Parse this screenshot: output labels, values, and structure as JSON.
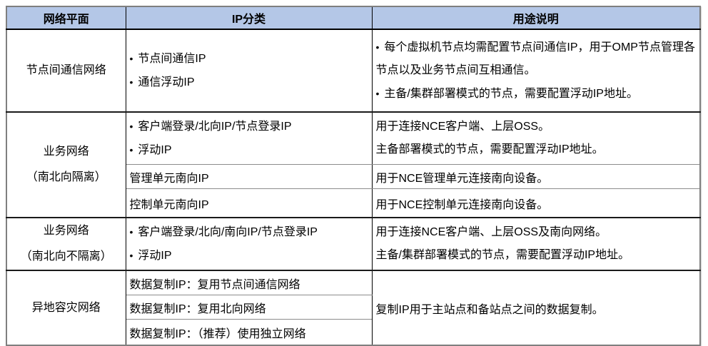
{
  "glyphs": {
    "bullet": "•"
  },
  "colors": {
    "header_bg": "#b4c7e7",
    "border_inner": "#000000",
    "border_outer": "#7f7f7f",
    "text": "#000000"
  },
  "header": {
    "col_plane": "网络平面",
    "col_ip": "IP分类",
    "col_usage": "用途说明"
  },
  "rows": {
    "r1": {
      "plane": "节点间通信网络",
      "ip": [
        "节点间通信IP",
        "通信浮动IP"
      ],
      "usage": [
        "每个虚拟机节点均需配置节点间通信IP，用于OMP节点管理各节点以及业务节点间互相通信。",
        "主备/集群部署模式的节点，需要配置浮动IP地址。"
      ]
    },
    "r2": {
      "plane": [
        "业务网络",
        "（南北向隔离）"
      ],
      "sub1": {
        "ip": [
          "客户端登录/北向IP/节点登录IP",
          "浮动IP"
        ],
        "usage": [
          "用于连接NCE客户端、上层OSS。",
          "主备部署模式的节点，需要配置浮动IP地址。"
        ]
      },
      "sub2": {
        "ip": "管理单元南向IP",
        "usage": "用于NCE管理单元连接南向设备。"
      },
      "sub3": {
        "ip": "控制单元南向IP",
        "usage": "用于NCE控制单元连接南向设备。"
      }
    },
    "r3": {
      "plane": [
        "业务网络",
        "（南北向不隔离）"
      ],
      "ip": [
        "客户端登录/北向/南向IP/节点登录IP",
        "浮动IP"
      ],
      "usage": [
        "用于连接NCE客户端、上层OSS及南向网络。",
        "主备/集群部署模式的节点，需要配置浮动IP地址。"
      ]
    },
    "r4": {
      "plane": "异地容灾网络",
      "ip1": "数据复制IP：复用节点间通信网络",
      "ip2": "数据复制IP：复用北向网络",
      "ip3": "数据复制IP：（推荐）使用独立网络",
      "usage": "复制IP用于主站点和备站点之间的数据复制。"
    }
  }
}
